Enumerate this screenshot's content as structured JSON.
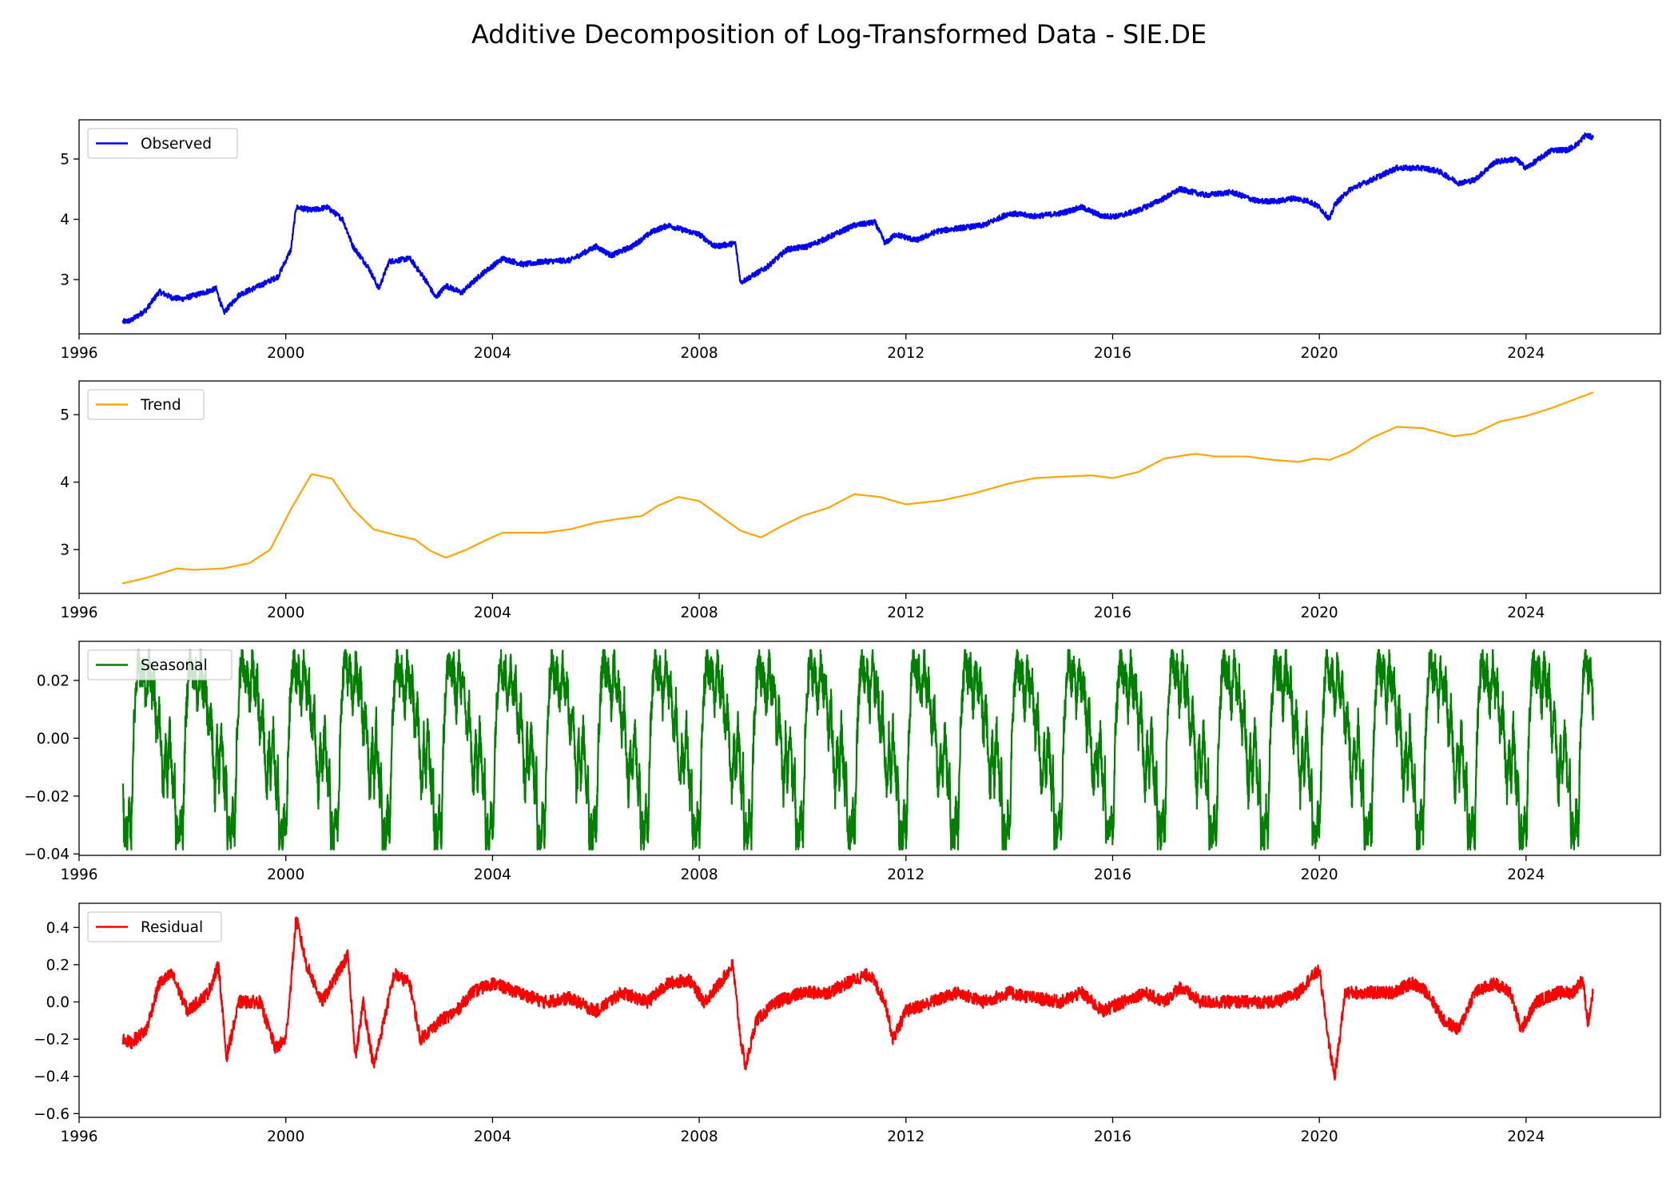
{
  "figure": {
    "title": "Additive Decomposition of Log-Transformed Data - SIE.DE"
  },
  "chart_data": [
    {
      "type": "line",
      "title": "",
      "xlabel": "",
      "ylabel": "",
      "xlim": [
        1996.0,
        2026.6
      ],
      "ylim": [
        2.1,
        5.65
      ],
      "x_ticks": [
        1996,
        2000,
        2004,
        2008,
        2012,
        2016,
        2020,
        2024
      ],
      "y_ticks": [
        3,
        4,
        5
      ],
      "y_tick_labels": [
        "3",
        "4",
        "5"
      ],
      "legend_position": "upper-left",
      "grid": false,
      "series": [
        {
          "name": "Observed",
          "color": "#0000ff",
          "noise": 0.045,
          "x": [
            1996.85,
            1997.0,
            1997.3,
            1997.55,
            1997.8,
            1998.0,
            1998.4,
            1998.65,
            1998.8,
            1999.1,
            1999.5,
            1999.85,
            2000.1,
            2000.2,
            2000.5,
            2000.8,
            2001.1,
            2001.3,
            2001.6,
            2001.8,
            2002.0,
            2002.4,
            2002.7,
            2002.9,
            2003.1,
            2003.4,
            2003.8,
            2004.2,
            2004.6,
            2005.0,
            2005.5,
            2006.0,
            2006.3,
            2006.7,
            2007.1,
            2007.4,
            2007.7,
            2008.0,
            2008.3,
            2008.7,
            2008.8,
            2009.0,
            2009.3,
            2009.7,
            2010.1,
            2010.5,
            2011.0,
            2011.4,
            2011.6,
            2011.8,
            2012.2,
            2012.6,
            2013.0,
            2013.5,
            2014.0,
            2014.5,
            2015.0,
            2015.4,
            2015.8,
            2016.1,
            2016.5,
            2017.0,
            2017.3,
            2017.8,
            2018.3,
            2018.8,
            2019.2,
            2019.5,
            2019.8,
            2020.0,
            2020.2,
            2020.3,
            2020.6,
            2021.0,
            2021.5,
            2022.0,
            2022.3,
            2022.7,
            2023.0,
            2023.4,
            2023.8,
            2024.0,
            2024.5,
            2024.8,
            2025.0,
            2025.15,
            2025.3
          ],
          "y": [
            2.3,
            2.32,
            2.5,
            2.8,
            2.7,
            2.68,
            2.78,
            2.85,
            2.45,
            2.75,
            2.9,
            3.05,
            3.5,
            4.2,
            4.15,
            4.2,
            4.0,
            3.55,
            3.2,
            2.85,
            3.3,
            3.35,
            3.0,
            2.7,
            2.9,
            2.78,
            3.1,
            3.35,
            3.25,
            3.3,
            3.32,
            3.55,
            3.4,
            3.55,
            3.8,
            3.9,
            3.82,
            3.75,
            3.55,
            3.6,
            2.95,
            3.05,
            3.2,
            3.5,
            3.55,
            3.7,
            3.9,
            3.95,
            3.6,
            3.75,
            3.65,
            3.8,
            3.85,
            3.9,
            4.1,
            4.05,
            4.1,
            4.2,
            4.05,
            4.05,
            4.15,
            4.35,
            4.5,
            4.4,
            4.45,
            4.3,
            4.3,
            4.35,
            4.3,
            4.2,
            4.0,
            4.25,
            4.5,
            4.65,
            4.85,
            4.85,
            4.8,
            4.6,
            4.65,
            4.95,
            5.0,
            4.85,
            5.15,
            5.15,
            5.25,
            5.4,
            5.35
          ]
        }
      ]
    },
    {
      "type": "line",
      "title": "",
      "xlabel": "",
      "ylabel": "",
      "xlim": [
        1996.0,
        2026.6
      ],
      "ylim": [
        2.35,
        5.5
      ],
      "x_ticks": [
        1996,
        2000,
        2004,
        2008,
        2012,
        2016,
        2020,
        2024
      ],
      "y_ticks": [
        3,
        4,
        5
      ],
      "y_tick_labels": [
        "3",
        "4",
        "5"
      ],
      "legend_position": "upper-left",
      "grid": false,
      "series": [
        {
          "name": "Trend",
          "color": "#ffa500",
          "noise": 0,
          "x": [
            1996.85,
            1997.3,
            1997.9,
            1998.2,
            1998.8,
            1999.3,
            1999.7,
            2000.1,
            2000.5,
            2000.9,
            2001.3,
            2001.7,
            2002.1,
            2002.5,
            2002.8,
            2003.1,
            2003.5,
            2003.9,
            2004.2,
            2004.6,
            2005.0,
            2005.5,
            2006.0,
            2006.4,
            2006.9,
            2007.2,
            2007.6,
            2008.0,
            2008.4,
            2008.8,
            2009.2,
            2009.6,
            2010.0,
            2010.5,
            2011.0,
            2011.5,
            2012.0,
            2012.7,
            2013.3,
            2014.0,
            2014.5,
            2015.0,
            2015.6,
            2016.0,
            2016.5,
            2017.0,
            2017.6,
            2018.0,
            2018.6,
            2019.1,
            2019.6,
            2019.9,
            2020.2,
            2020.6,
            2021.0,
            2021.5,
            2022.0,
            2022.6,
            2023.0,
            2023.5,
            2024.0,
            2024.5,
            2025.3
          ],
          "y": [
            2.5,
            2.58,
            2.72,
            2.7,
            2.72,
            2.8,
            3.0,
            3.6,
            4.12,
            4.05,
            3.6,
            3.3,
            3.22,
            3.15,
            2.98,
            2.88,
            3.0,
            3.15,
            3.25,
            3.25,
            3.25,
            3.3,
            3.4,
            3.45,
            3.5,
            3.65,
            3.78,
            3.72,
            3.5,
            3.28,
            3.18,
            3.35,
            3.5,
            3.62,
            3.82,
            3.78,
            3.67,
            3.73,
            3.83,
            3.98,
            4.06,
            4.08,
            4.1,
            4.06,
            4.15,
            4.35,
            4.42,
            4.38,
            4.38,
            4.33,
            4.3,
            4.35,
            4.33,
            4.45,
            4.65,
            4.82,
            4.8,
            4.68,
            4.72,
            4.9,
            4.98,
            5.1,
            5.33
          ]
        }
      ]
    },
    {
      "type": "line",
      "title": "",
      "xlabel": "",
      "ylabel": "",
      "xlim": [
        1996.0,
        2026.6
      ],
      "ylim": [
        -0.0405,
        0.0335
      ],
      "x_ticks": [
        1996,
        2000,
        2004,
        2008,
        2012,
        2016,
        2020,
        2024
      ],
      "y_ticks": [
        -0.04,
        -0.02,
        0.0,
        0.02
      ],
      "y_tick_labels": [
        "−0.04",
        "−0.02",
        "0.00",
        "0.02"
      ],
      "legend_position": "upper-left",
      "grid": false,
      "series": [
        {
          "name": "Seasonal",
          "color": "#008000",
          "noise": 0,
          "period_years": 1.0,
          "start_year": 1996.85,
          "end_year": 2025.3,
          "pattern_x": [
            0.0,
            0.02,
            0.05,
            0.08,
            0.12,
            0.16,
            0.2,
            0.25,
            0.3,
            0.35,
            0.4,
            0.45,
            0.5,
            0.55,
            0.6,
            0.65,
            0.7,
            0.74,
            0.78,
            0.82,
            0.86,
            0.9,
            0.94,
            0.97,
            1.0
          ],
          "pattern_y": [
            -0.01,
            -0.037,
            -0.03,
            -0.036,
            -0.025,
            -0.034,
            0.0,
            0.018,
            0.029,
            0.02,
            0.024,
            0.01,
            0.028,
            0.015,
            0.02,
            0.0,
            0.012,
            -0.005,
            -0.02,
            0.0,
            -0.015,
            0.005,
            -0.01,
            -0.02,
            -0.01
          ]
        }
      ]
    },
    {
      "type": "line",
      "title": "",
      "xlabel": "",
      "ylabel": "",
      "xlim": [
        1996.0,
        2026.6
      ],
      "ylim": [
        -0.62,
        0.53
      ],
      "x_ticks": [
        1996,
        2000,
        2004,
        2008,
        2012,
        2016,
        2020,
        2024
      ],
      "y_ticks": [
        -0.6,
        -0.4,
        -0.2,
        0.0,
        0.2,
        0.4
      ],
      "y_tick_labels": [
        "−0.6",
        "−0.4",
        "−0.2",
        "0.0",
        "0.2",
        "0.4"
      ],
      "legend_position": "upper-left",
      "grid": false,
      "series": [
        {
          "name": "Residual",
          "color": "#ff0000",
          "noise": 0.035,
          "x": [
            1996.85,
            1997.0,
            1997.3,
            1997.55,
            1997.8,
            1998.1,
            1998.5,
            1998.7,
            1998.85,
            1999.1,
            1999.5,
            1999.8,
            2000.0,
            2000.1,
            2000.2,
            2000.4,
            2000.7,
            2001.0,
            2001.2,
            2001.35,
            2001.5,
            2001.7,
            2001.9,
            2002.1,
            2002.4,
            2002.6,
            2002.8,
            2003.0,
            2003.3,
            2003.6,
            2004.0,
            2004.5,
            2005.0,
            2005.5,
            2006.0,
            2006.5,
            2007.0,
            2007.4,
            2007.8,
            2008.1,
            2008.4,
            2008.65,
            2008.8,
            2008.9,
            2009.1,
            2009.5,
            2010.0,
            2010.5,
            2011.0,
            2011.3,
            2011.6,
            2011.75,
            2012.0,
            2012.5,
            2013.0,
            2013.5,
            2014.0,
            2014.5,
            2015.0,
            2015.4,
            2015.8,
            2016.2,
            2016.6,
            2017.0,
            2017.3,
            2017.7,
            2018.2,
            2018.7,
            2019.2,
            2019.6,
            2019.8,
            2020.0,
            2020.2,
            2020.3,
            2020.5,
            2020.9,
            2021.4,
            2021.8,
            2022.1,
            2022.4,
            2022.7,
            2023.0,
            2023.4,
            2023.7,
            2023.9,
            2024.2,
            2024.6,
            2024.9,
            2025.1,
            2025.2,
            2025.3
          ],
          "y": [
            -0.2,
            -0.22,
            -0.15,
            0.1,
            0.15,
            -0.05,
            0.05,
            0.2,
            -0.3,
            0.0,
            0.0,
            -0.25,
            -0.2,
            0.1,
            0.45,
            0.2,
            0.0,
            0.15,
            0.25,
            -0.3,
            0.0,
            -0.35,
            -0.1,
            0.15,
            0.1,
            -0.2,
            -0.15,
            -0.1,
            -0.05,
            0.05,
            0.1,
            0.05,
            0.0,
            0.02,
            -0.05,
            0.05,
            0.0,
            0.1,
            0.12,
            0.0,
            0.1,
            0.2,
            -0.2,
            -0.35,
            -0.1,
            0.0,
            0.05,
            0.05,
            0.12,
            0.15,
            0.0,
            -0.2,
            -0.05,
            0.0,
            0.05,
            0.0,
            0.05,
            0.02,
            0.0,
            0.05,
            -0.05,
            0.0,
            0.05,
            0.0,
            0.08,
            0.0,
            0.0,
            0.0,
            0.0,
            0.05,
            0.12,
            0.17,
            -0.25,
            -0.4,
            0.05,
            0.05,
            0.05,
            0.1,
            0.05,
            -0.1,
            -0.15,
            0.05,
            0.1,
            0.05,
            -0.15,
            0.0,
            0.05,
            0.05,
            0.12,
            -0.12,
            0.05
          ]
        }
      ]
    }
  ]
}
